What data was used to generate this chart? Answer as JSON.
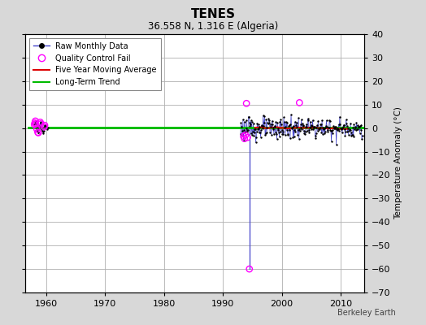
{
  "title": "TENES",
  "subtitle": "36.558 N, 1.316 E (Algeria)",
  "ylabel": "Temperature Anomaly (°C)",
  "watermark": "Berkeley Earth",
  "xlim": [
    1956.5,
    2014
  ],
  "ylim": [
    -70,
    40
  ],
  "yticks": [
    -70,
    -60,
    -50,
    -40,
    -30,
    -20,
    -10,
    0,
    10,
    20,
    30,
    40
  ],
  "xticks": [
    1960,
    1970,
    1980,
    1990,
    2000,
    2010
  ],
  "bg_color": "#d8d8d8",
  "plot_bg_color": "#ffffff",
  "grid_color": "#b0b0b0",
  "raw_color": "#4444cc",
  "raw_dot_color": "#000000",
  "qc_color": "#ff00ff",
  "ma_color": "#dd0000",
  "trend_color": "#00bb00",
  "legend_labels": [
    "Raw Monthly Data",
    "Quality Control Fail",
    "Five Year Moving Average",
    "Long-Term Trend"
  ],
  "early_x": [
    1958.0,
    1958.08,
    1958.17,
    1958.25,
    1958.33,
    1958.42,
    1958.5,
    1958.58,
    1958.67,
    1958.75,
    1958.83,
    1958.92,
    1959.0,
    1959.08,
    1959.17,
    1959.25,
    1959.33,
    1959.42,
    1959.5,
    1959.58,
    1959.67,
    1959.75,
    1959.83,
    1959.92,
    1960.0,
    1960.08,
    1960.17,
    1960.25
  ],
  "early_y": [
    1.5,
    2.2,
    3.0,
    1.8,
    0.5,
    -0.5,
    -1.2,
    -1.8,
    -2.0,
    0.2,
    1.0,
    0.5,
    2.5,
    1.8,
    0.8,
    -0.3,
    -1.0,
    -1.5,
    -2.2,
    -1.0,
    0.5,
    1.2,
    0.8,
    0.2,
    1.0,
    0.5,
    -0.5,
    0.2
  ],
  "early_qc_idx": [
    0,
    1,
    2,
    3,
    5,
    7,
    8,
    12,
    13,
    20,
    21
  ],
  "main_seed": 123,
  "main_start": 1993.0,
  "main_end": 2013.75,
  "outlier_x": 1994.5,
  "outlier_y": -60.0,
  "outlier_x2": 1994.0,
  "outlier_y2": 10.5,
  "outlier_x3": 2003.0,
  "outlier_y3": 10.8,
  "qc_near_outlier_x": [
    1993.5,
    1993.67,
    1993.83,
    1994.0,
    1994.17,
    1994.5
  ],
  "qc_near_outlier_y": [
    -3.5,
    -4.5,
    -3.0,
    10.5,
    -4.0,
    -60.0
  ],
  "trend_x": [
    1957.0,
    2014.0
  ],
  "trend_y": [
    0.15,
    0.15
  ]
}
